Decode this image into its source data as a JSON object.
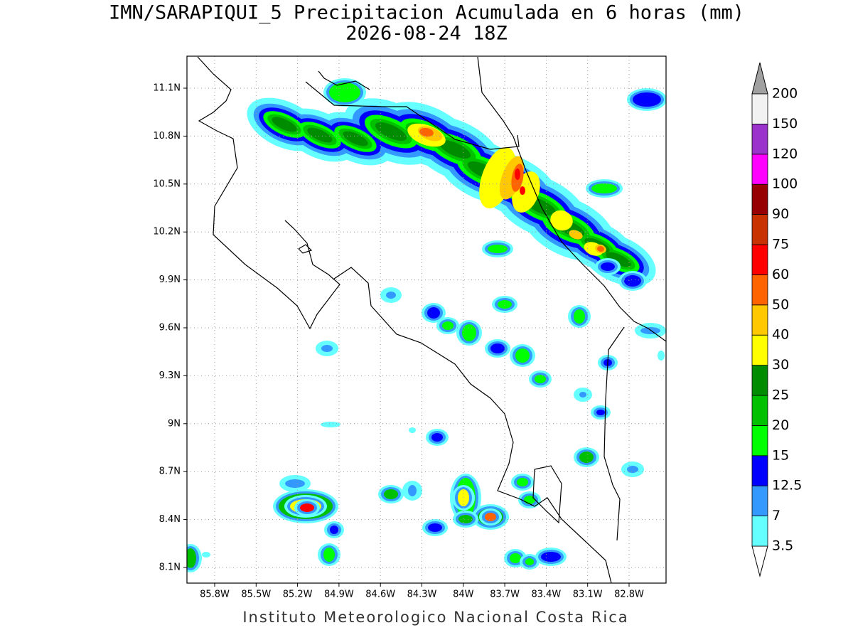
{
  "title": "IMN/SARAPIQUI_5 Precipitacion Acumulada en 6 horas (mm)",
  "subtitle": "2026-08-24 18Z",
  "map": {
    "lon_labels": [
      "85.8W",
      "85.5W",
      "85.2W",
      "84.9W",
      "84.6W",
      "84.3W",
      "84W",
      "83.7W",
      "83.4W",
      "83.1W",
      "82.8W"
    ],
    "lat_labels": [
      "11.1N",
      "10.8N",
      "10.5N",
      "10.2N",
      "9.9N",
      "9.6N",
      "9.3N",
      "9N",
      "8.7N",
      "8.4N",
      "8.1N"
    ]
  },
  "colorbar": {
    "labels": [
      "3.5",
      "7",
      "12.5",
      "15",
      "20",
      "25",
      "30",
      "40",
      "50",
      "60",
      "75",
      "90",
      "100",
      "120",
      "150",
      "200"
    ],
    "colors": [
      "#66ffff",
      "#3399ff",
      "#0000ff",
      "#00ff00",
      "#00c000",
      "#008c00",
      "#ffff00",
      "#ffc800",
      "#ff6400",
      "#ff0000",
      "#c83200",
      "#960000",
      "#ff00ff",
      "#9933cc",
      "#f2f2f2"
    ],
    "below_color": "#ffffff",
    "above_color": "#a0a0a0"
  },
  "footer": "Instituto Meteorologico Nacional Costa Rica"
}
